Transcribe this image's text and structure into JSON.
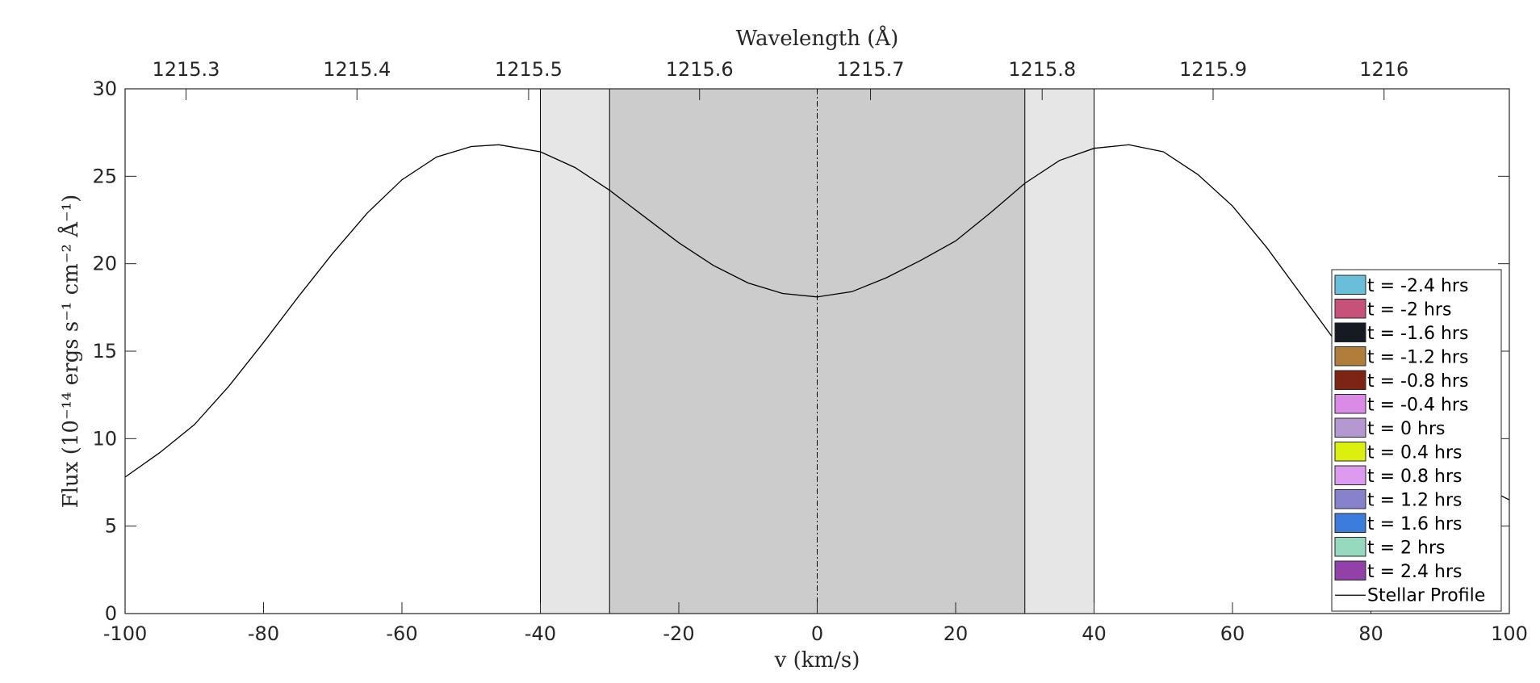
{
  "chart_data": {
    "type": "line",
    "xlabel": "v (km/s)",
    "x2label": "Wavelength (Å)",
    "ylabel": "Flux (10⁻¹⁴ ergs s⁻¹ cm⁻² Å⁻¹)",
    "xlim": [
      -100,
      100
    ],
    "ylim": [
      0,
      30
    ],
    "x_ticks": [
      "-100",
      "-80",
      "-60",
      "-40",
      "-20",
      "0",
      "20",
      "40",
      "60",
      "80",
      "100"
    ],
    "y_ticks": [
      "0",
      "5",
      "10",
      "15",
      "20",
      "25",
      "30"
    ],
    "x2_ticks": [
      {
        "label": "1215.3",
        "v": -91.2
      },
      {
        "label": "1215.4",
        "v": -66.5
      },
      {
        "label": "1215.5",
        "v": -41.7
      },
      {
        "label": "1215.6",
        "v": -17.0
      },
      {
        "label": "1215.7",
        "v": 7.7
      },
      {
        "label": "1215.8",
        "v": 32.5
      },
      {
        "label": "1215.9",
        "v": 57.2
      },
      {
        "label": "1216",
        "v": 81.9
      }
    ],
    "bands": [
      {
        "from": -40,
        "to": 40,
        "color": "#e6e6e6"
      },
      {
        "from": -30,
        "to": 30,
        "color": "#cccccc"
      }
    ],
    "center_line": 0,
    "grid": false,
    "legend_position": "right",
    "legend": [
      {
        "label": "t = -2.4 hrs",
        "color": "#69bfd9"
      },
      {
        "label": "t = -2 hrs",
        "color": "#c8517a"
      },
      {
        "label": "t = -1.6 hrs",
        "color": "#161a22"
      },
      {
        "label": "t = -1.2 hrs",
        "color": "#b07d3a"
      },
      {
        "label": "t = -0.8 hrs",
        "color": "#7e2414"
      },
      {
        "label": "t = -0.4 hrs",
        "color": "#dc8ae8"
      },
      {
        "label": "t = 0 hrs",
        "color": "#b598d1"
      },
      {
        "label": "t = 0.4 hrs",
        "color": "#dcf00f"
      },
      {
        "label": "t = 0.8 hrs",
        "color": "#dd9bef"
      },
      {
        "label": "t = 1.2 hrs",
        "color": "#8882cc"
      },
      {
        "label": "t = 1.6 hrs",
        "color": "#3c7ddb"
      },
      {
        "label": "t = 2 hrs",
        "color": "#95d9bf"
      },
      {
        "label": "t = 2.4 hrs",
        "color": "#9241a8"
      }
    ],
    "series": [
      {
        "name": "Stellar Profile",
        "color": "#000000",
        "x": [
          -100,
          -95,
          -90,
          -85,
          -80,
          -75,
          -70,
          -65,
          -60,
          -55,
          -50,
          -46,
          -40,
          -35,
          -30,
          -25,
          -20,
          -15,
          -10,
          -5,
          0,
          5,
          10,
          15,
          20,
          25,
          30,
          35,
          40,
          45,
          50,
          55,
          60,
          65,
          70,
          75,
          80,
          85,
          90,
          95,
          100
        ],
        "y": [
          7.8,
          9.2,
          10.8,
          13.0,
          15.5,
          18.1,
          20.6,
          22.9,
          24.8,
          26.1,
          26.7,
          26.8,
          26.4,
          25.5,
          24.2,
          22.7,
          21.2,
          19.9,
          18.9,
          18.3,
          18.1,
          18.4,
          19.2,
          20.2,
          21.3,
          22.9,
          24.6,
          25.9,
          26.6,
          26.8,
          26.4,
          25.1,
          23.3,
          20.9,
          18.2,
          15.5,
          13.0,
          10.8,
          9.0,
          7.5,
          6.5
        ]
      }
    ]
  }
}
